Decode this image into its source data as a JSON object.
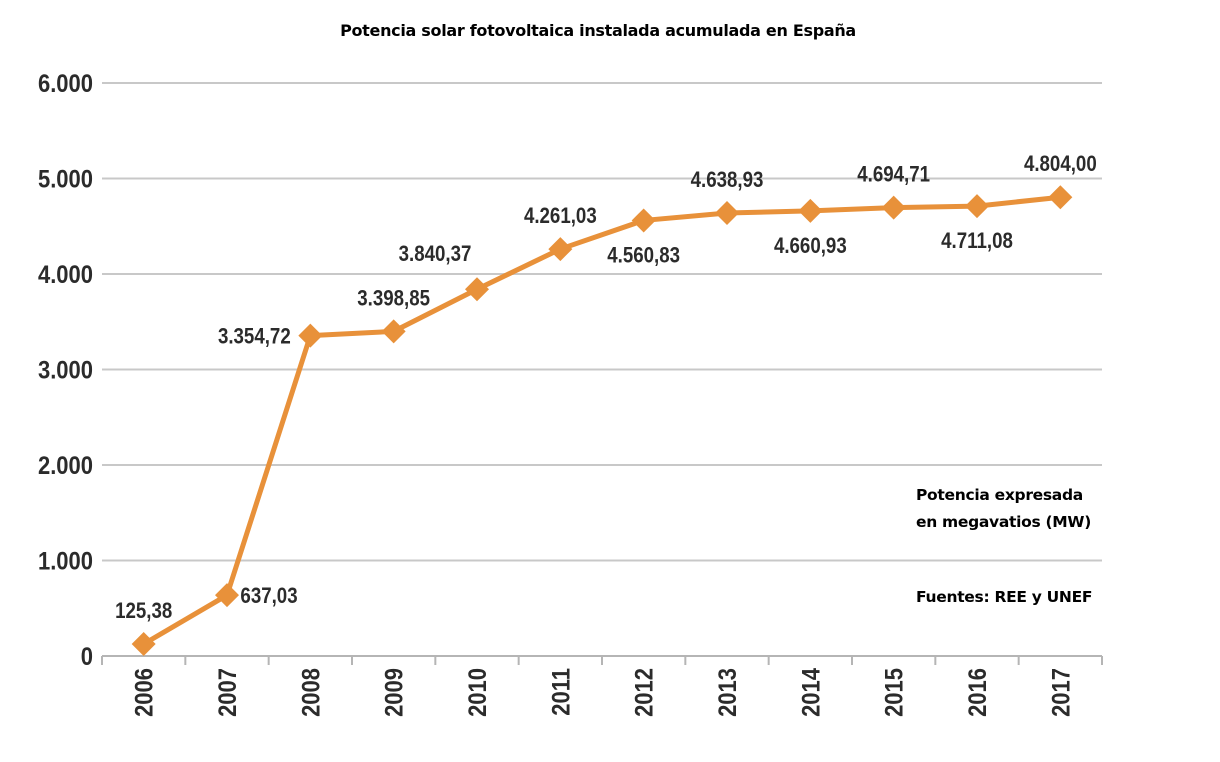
{
  "chart_data": {
    "type": "line",
    "title": "Potencia solar fotovoltaica instalada acumulada en España",
    "xlabel": "",
    "ylabel": "",
    "categories": [
      "2006",
      "2007",
      "2008",
      "2009",
      "2010",
      "2011",
      "2012",
      "2013",
      "2014",
      "2015",
      "2016",
      "2017"
    ],
    "values": [
      125.38,
      637.03,
      3354.72,
      3398.85,
      3840.37,
      4261.03,
      4560.83,
      4638.93,
      4660.93,
      4694.71,
      4711.08,
      4804.0
    ],
    "data_labels": [
      "125,38",
      "637,03",
      "3.354,72",
      "3.398,85",
      "3.840,37",
      "4.261,03",
      "4.560,83",
      "4.638,93",
      "4.660,93",
      "4.694,71",
      "4.711,08",
      "4.804,00"
    ],
    "label_placement": [
      "above",
      "right",
      "left",
      "above",
      "above-left",
      "above",
      "below",
      "above",
      "below",
      "above",
      "below",
      "above"
    ],
    "ylim": [
      0,
      6000
    ],
    "yticks": [
      0,
      1000,
      2000,
      3000,
      4000,
      5000,
      6000
    ],
    "ytick_labels": [
      "0",
      "1.000",
      "2.000",
      "3.000",
      "4.000",
      "5.000",
      "6.000"
    ],
    "grid": "horizontal",
    "marker": "diamond",
    "color": "#E8913A",
    "annotations": [
      "Potencia expresada",
      "en megavatios (MW)",
      "Fuentes: REE y UNEF"
    ]
  }
}
